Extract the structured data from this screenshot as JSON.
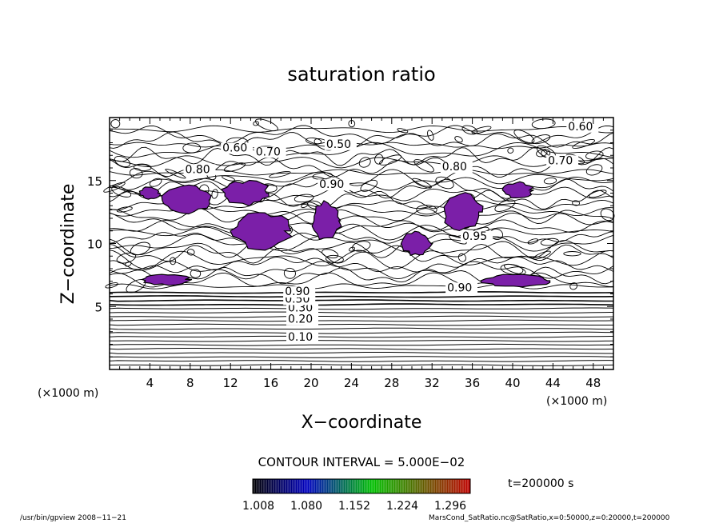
{
  "chart_data": {
    "type": "contour",
    "title": "saturation ratio",
    "xlabel": "X−coordinate",
    "ylabel": "Z−coordinate",
    "x_unit": "(×1000 m)",
    "y_unit": "(×1000 m)",
    "xlim": [
      0,
      50
    ],
    "ylim": [
      0,
      20
    ],
    "x_ticks": [
      4,
      8,
      12,
      16,
      20,
      24,
      28,
      32,
      36,
      40,
      44,
      48
    ],
    "y_ticks": [
      5,
      10,
      15
    ],
    "lower_contour_labels": [
      {
        "x": 17.7,
        "z": 2.3,
        "label": "0.10"
      },
      {
        "x": 17.7,
        "z": 3.7,
        "label": "0.20"
      },
      {
        "x": 17.7,
        "z": 4.6,
        "label": "0.30"
      },
      {
        "x": 17.4,
        "z": 5.3,
        "label": "0.50"
      },
      {
        "x": 17.4,
        "z": 5.9,
        "label": "0.90"
      }
    ],
    "upper_contour_labels": [
      {
        "x": 11.2,
        "z": 17.3,
        "label": "0.60"
      },
      {
        "x": 14.5,
        "z": 17.0,
        "label": "0.70"
      },
      {
        "x": 21.5,
        "z": 17.6,
        "label": "0.50"
      },
      {
        "x": 7.5,
        "z": 15.6,
        "label": "0.80"
      },
      {
        "x": 20.8,
        "z": 14.4,
        "label": "0.90"
      },
      {
        "x": 45.5,
        "z": 19.0,
        "label": "0.60"
      },
      {
        "x": 43.5,
        "z": 16.3,
        "label": "0.70"
      },
      {
        "x": 33.0,
        "z": 15.8,
        "label": "0.80"
      },
      {
        "x": 33.5,
        "z": 6.2,
        "label": "0.90"
      },
      {
        "x": 35.0,
        "z": 10.3,
        "label": "0.95"
      }
    ],
    "supersaturated_regions": [
      {
        "x": [
          3,
          5
        ],
        "z": [
          13.5,
          14.5
        ]
      },
      {
        "x": [
          5,
          10
        ],
        "z": [
          12.3,
          14.6
        ]
      },
      {
        "x": [
          11,
          16
        ],
        "z": [
          13,
          15
        ]
      },
      {
        "x": [
          12,
          18
        ],
        "z": [
          9.5,
          12.5
        ]
      },
      {
        "x": [
          20,
          23
        ],
        "z": [
          10.3,
          13.3
        ]
      },
      {
        "x": [
          29,
          32
        ],
        "z": [
          9,
          11
        ]
      },
      {
        "x": [
          33,
          37
        ],
        "z": [
          11,
          14
        ]
      },
      {
        "x": [
          39,
          42
        ],
        "z": [
          13.6,
          14.9
        ]
      },
      {
        "x": [
          3,
          8
        ],
        "z": [
          6.7,
          7.6
        ]
      },
      {
        "x": [
          37,
          44
        ],
        "z": [
          6.5,
          7.6
        ]
      }
    ],
    "contour_interval_text": "CONTOUR INTERVAL = 5.000E−02",
    "colorbar": {
      "tick_labels": [
        "1.008",
        "1.080",
        "1.152",
        "1.224",
        "1.296"
      ],
      "color_low": "#000000",
      "color_mid_low": "#0000c0",
      "color_mid": "#00c000",
      "color_high": "#c00000",
      "fill_color": "#7b1fa8"
    },
    "time_label": "t=200000 s"
  },
  "footer": {
    "left": "/usr/bin/gpview   2008−11−21",
    "right": "MarsCond_SatRatio.nc@SatRatio,x=0:50000,z=0:20000,t=200000"
  }
}
